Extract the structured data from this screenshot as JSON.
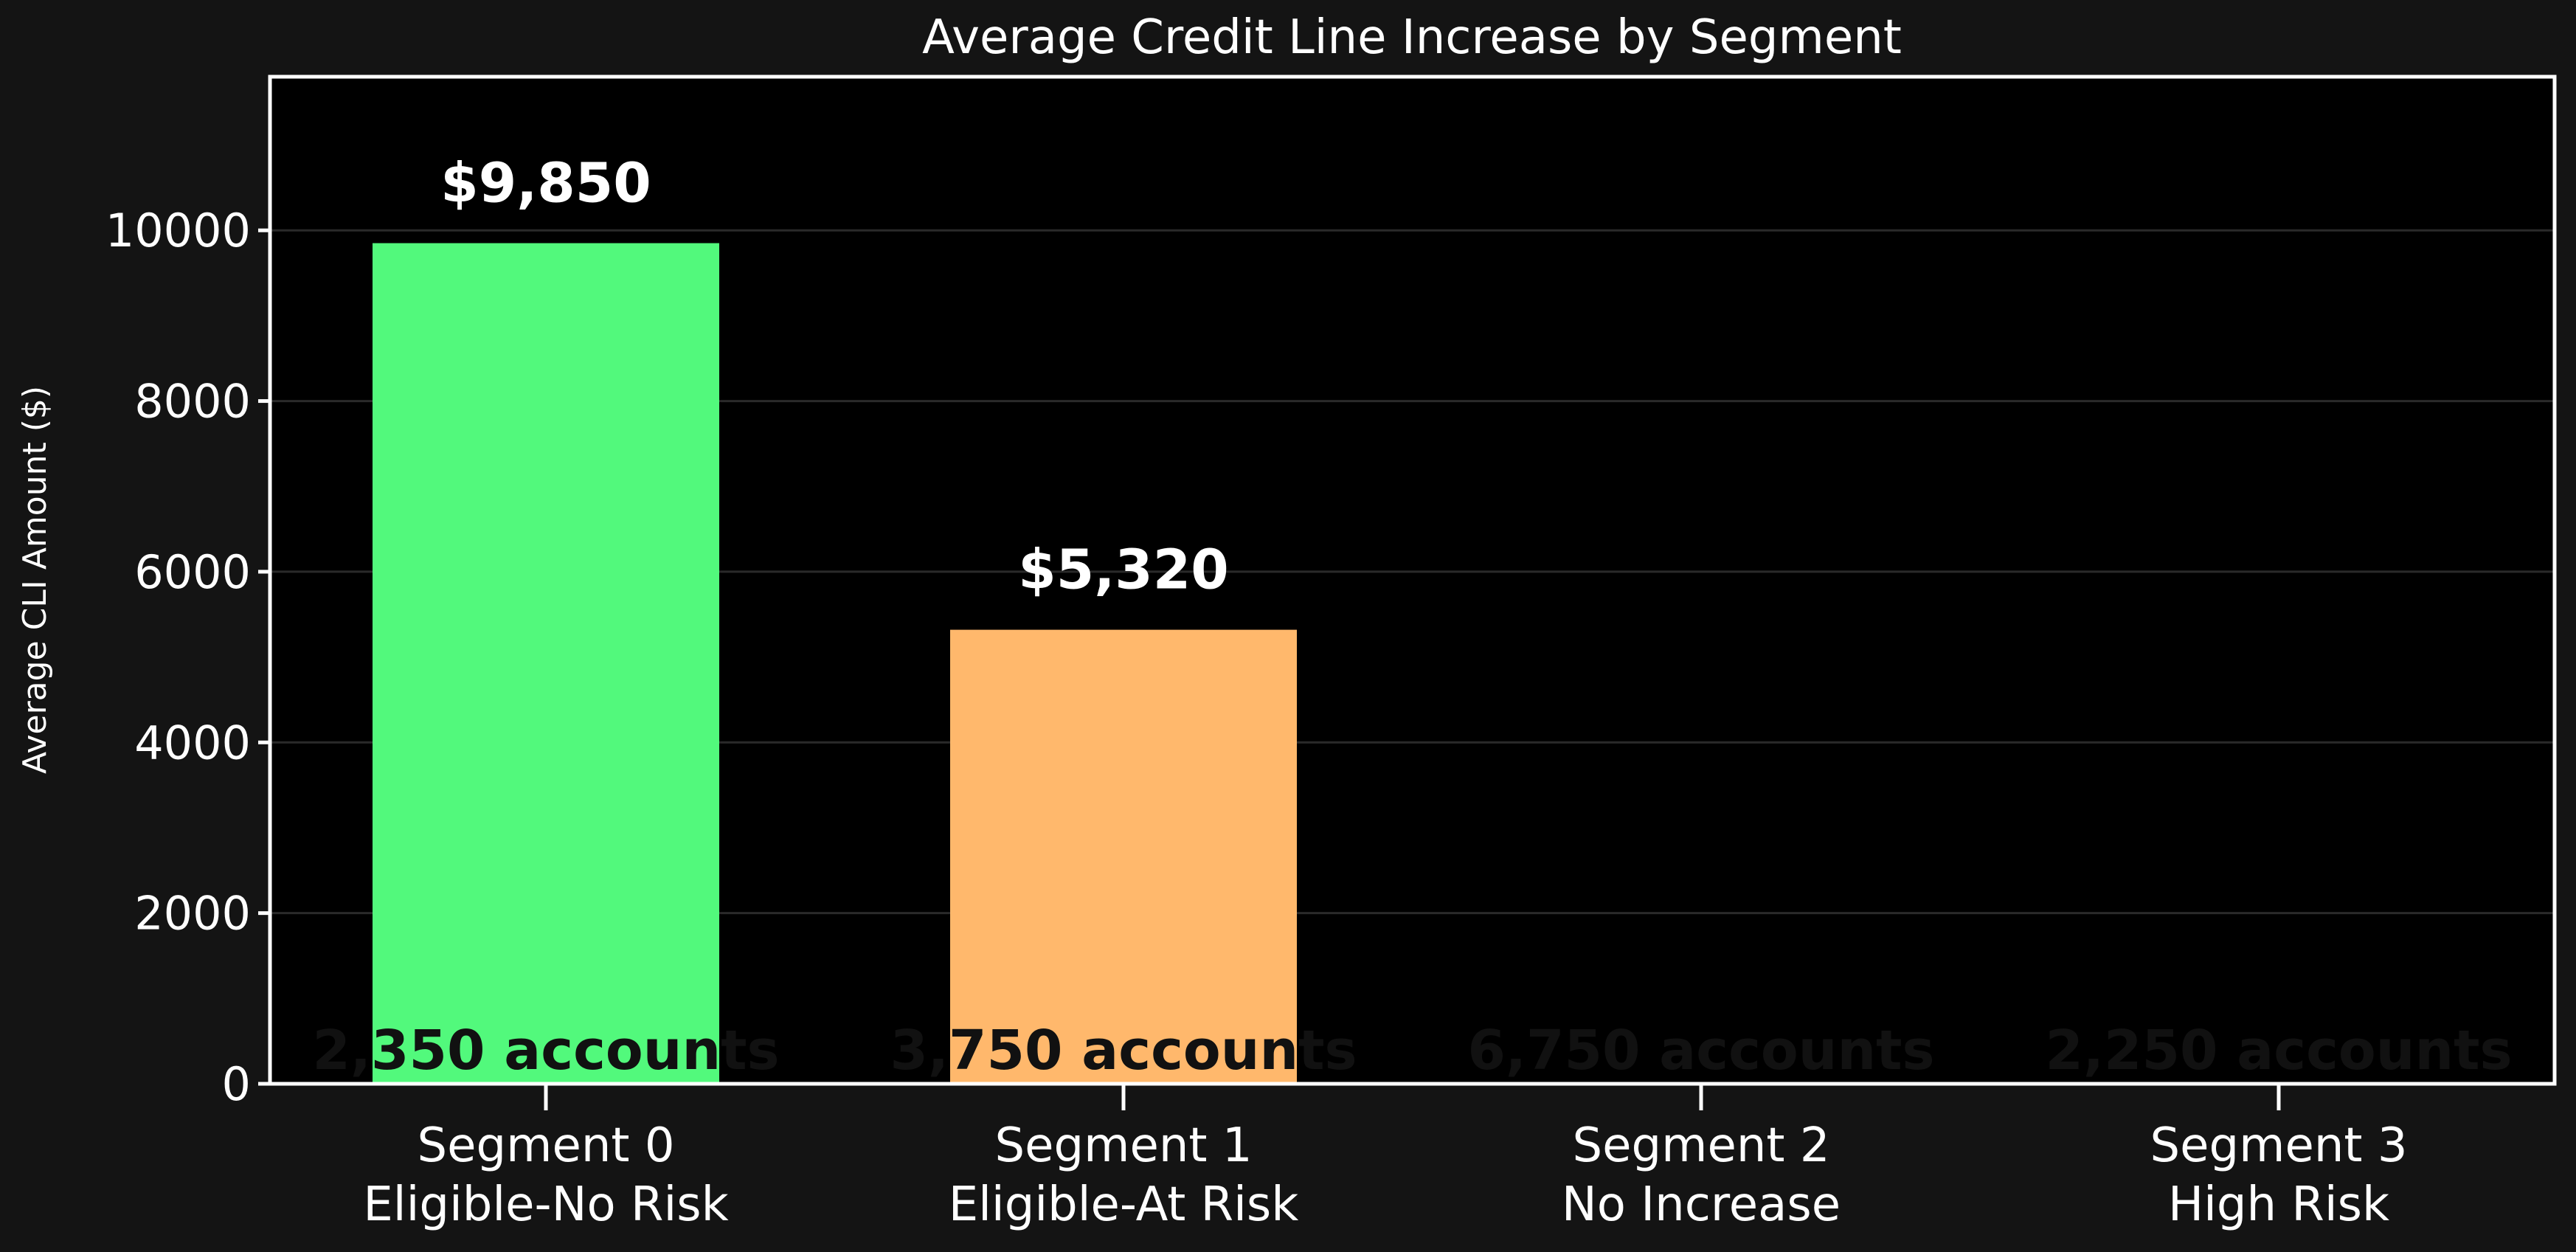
{
  "chart_data": {
    "type": "bar",
    "title": "Average Credit Line Increase by Segment",
    "xlabel": "",
    "ylabel": "Average CLI Amount ($)",
    "ylim": [
      0,
      11800
    ],
    "yticks": [
      0,
      2000,
      4000,
      6000,
      8000,
      10000
    ],
    "grid": "horizontal",
    "categories": [
      "Segment 0\nEligible-No Risk",
      "Segment 1\nEligible-At Risk",
      "Segment 2\nNo Increase",
      "Segment 3\nHigh Risk"
    ],
    "values": [
      9850,
      5320,
      0,
      0
    ],
    "value_labels": [
      "$9,850",
      "$5,320",
      "",
      ""
    ],
    "count_labels": [
      "2,350 accounts",
      "3,750 accounts",
      "6,750 accounts",
      "2,250 accounts"
    ],
    "colors": [
      "#52f97c",
      "#ffb86c",
      "#000000",
      "#000000"
    ]
  },
  "colors": {
    "figure_bg": "#141414",
    "plot_bg": "#000000",
    "axis": "#ffffff",
    "text": "#ffffff",
    "grid": "#2a2a2a",
    "count_text": "#111111"
  }
}
